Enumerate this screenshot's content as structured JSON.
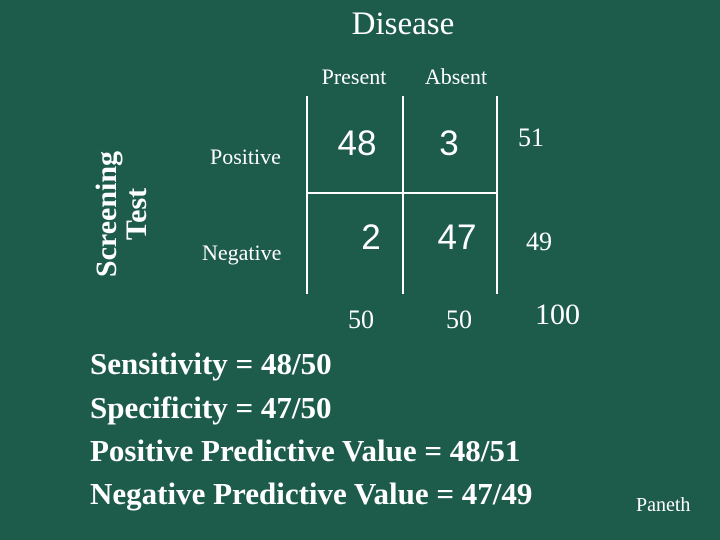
{
  "slide": {
    "title": "Disease",
    "columns": [
      "Present",
      "Absent"
    ],
    "row_axis_lines": [
      "Screening",
      "Test"
    ],
    "rows": [
      "Positive",
      "Negative"
    ],
    "cells": [
      [
        "48",
        "3"
      ],
      [
        "2",
        "47"
      ]
    ],
    "row_totals": [
      "51",
      "49"
    ],
    "column_totals": [
      "50",
      "50"
    ],
    "grand_total": "100",
    "metrics": [
      "Sensitivity = 48/50",
      "Specificity = 47/50",
      "Positive Predictive Value = 48/51",
      "Negative Predictive Value = 47/49"
    ],
    "credit": "Paneth"
  },
  "colors": {
    "background": "#1d5b4b",
    "text": "#ffffff",
    "lines": "#ffffff"
  }
}
